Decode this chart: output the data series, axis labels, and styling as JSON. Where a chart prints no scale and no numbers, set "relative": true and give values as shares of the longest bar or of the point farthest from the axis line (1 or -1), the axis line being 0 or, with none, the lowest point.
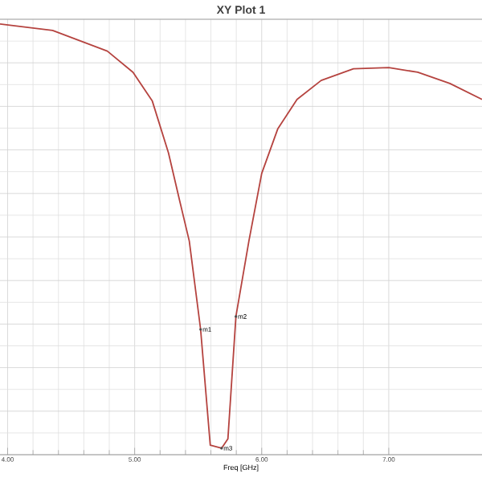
{
  "chart_data": {
    "type": "line",
    "title": "XY Plot 1",
    "xlabel": "Freq [GHz]",
    "relative": true,
    "x": [
      3.94,
      4.354,
      4.785,
      4.987,
      5.139,
      5.266,
      5.354,
      5.43,
      5.519,
      5.595,
      5.684,
      5.734,
      5.797,
      5.899,
      6.0,
      6.127,
      6.278,
      6.468,
      6.722,
      7.0,
      7.228,
      7.481,
      7.734
    ],
    "series": [
      {
        "color": "#b5433f",
        "values": [
          1.0,
          0.985,
          0.937,
          0.888,
          0.821,
          0.701,
          0.59,
          0.496,
          0.291,
          0.022,
          0.015,
          0.037,
          0.321,
          0.496,
          0.653,
          0.757,
          0.825,
          0.869,
          0.896,
          0.899,
          0.888,
          0.862,
          0.825
        ]
      }
    ],
    "xlim": [
      3.94,
      7.734
    ],
    "xticks": [
      {
        "value": 4,
        "label": "4.00"
      },
      {
        "value": 5,
        "label": "5.00"
      },
      {
        "value": 6,
        "label": "6.00"
      },
      {
        "value": 7,
        "label": "7.00"
      }
    ],
    "annotations": [
      {
        "text": "m1",
        "x": 5.519,
        "y": 0.291
      },
      {
        "text": "m2",
        "x": 5.797,
        "y": 0.321
      },
      {
        "text": "m3",
        "x": 5.684,
        "y": 0.015
      }
    ],
    "grid": true,
    "marker": "none",
    "line_style": "solid"
  }
}
